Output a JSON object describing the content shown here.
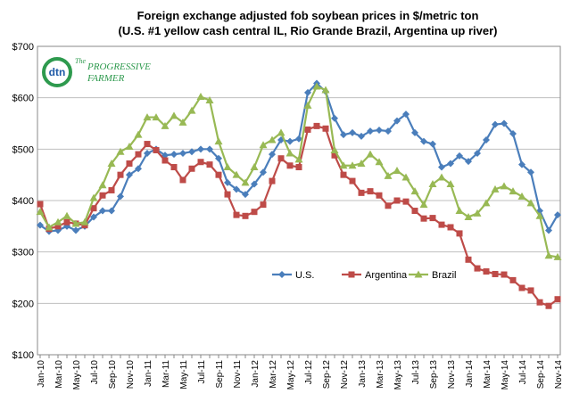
{
  "logo": [
    "dtn",
    "The",
    "PROGRESSIVE",
    "FARMER"
  ],
  "chart_data": {
    "type": "line",
    "title": "Foreign exchange adjusted fob soybean prices in $/metric ton",
    "subtitle": "(U.S. #1 yellow cash central IL, Rio Grande Brazil, Argentina up river)",
    "categories": [
      "Jan-10",
      null,
      "Mar-10",
      null,
      "May-10",
      null,
      "Jul-10",
      null,
      "Sep-10",
      null,
      "Nov-10",
      null,
      "Jan-11",
      null,
      "Mar-11",
      null,
      "May-11",
      null,
      "Jul-11",
      null,
      "Sep-11",
      null,
      "Nov-11",
      null,
      "Jan-12",
      null,
      "Mar-12",
      null,
      "May-12",
      null,
      "Jul-12",
      null,
      "Sep-12",
      null,
      "Nov-12",
      null,
      "Jan-13",
      null,
      "Mar-13",
      null,
      "May-13",
      null,
      "Jul-13",
      null,
      "Sep-13",
      null,
      "Nov-13",
      null,
      "Jan-14",
      null,
      "Mar-14",
      null,
      "May-14",
      null,
      "Jul-14",
      null,
      "Sep-14",
      null,
      "Nov-14"
    ],
    "series": [
      {
        "name": "U.S.",
        "color": "#4a7ebb",
        "marker": "diamond",
        "values": [
          352,
          340,
          342,
          350,
          342,
          350,
          368,
          380,
          380,
          408,
          450,
          462,
          492,
          500,
          488,
          490,
          492,
          495,
          500,
          500,
          482,
          435,
          422,
          412,
          432,
          455,
          490,
          518,
          515,
          520,
          610,
          628,
          612,
          560,
          528,
          532,
          525,
          535,
          537,
          535,
          555,
          568,
          532,
          515,
          510,
          465,
          472,
          487,
          476,
          492,
          518,
          548,
          550,
          530,
          470,
          455,
          380,
          342,
          372
        ]
      },
      {
        "name": "Argentina",
        "color": "#be4b48",
        "marker": "square",
        "values": [
          393,
          345,
          350,
          358,
          355,
          352,
          385,
          410,
          420,
          450,
          472,
          490,
          510,
          498,
          478,
          465,
          440,
          462,
          475,
          470,
          450,
          412,
          372,
          370,
          378,
          392,
          438,
          482,
          468,
          465,
          538,
          545,
          540,
          488,
          450,
          438,
          415,
          418,
          410,
          390,
          400,
          398,
          380,
          365,
          366,
          353,
          348,
          336,
          285,
          268,
          262,
          257,
          256,
          245,
          230,
          225,
          202,
          195,
          208
        ]
      },
      {
        "name": "Brazil",
        "color": "#98b954",
        "marker": "triangle",
        "values": [
          378,
          348,
          358,
          370,
          355,
          358,
          405,
          430,
          472,
          495,
          505,
          528,
          562,
          562,
          545,
          565,
          552,
          575,
          602,
          595,
          515,
          465,
          450,
          435,
          465,
          508,
          518,
          532,
          492,
          480,
          585,
          622,
          615,
          498,
          468,
          468,
          472,
          490,
          475,
          448,
          458,
          445,
          418,
          392,
          432,
          445,
          432,
          380,
          368,
          375,
          395,
          422,
          428,
          418,
          408,
          395,
          370,
          293,
          290
        ]
      }
    ],
    "ylim": [
      100,
      700
    ],
    "yticks": [
      {
        "value": 100,
        "label": "$100"
      },
      {
        "value": 200,
        "label": "$200"
      },
      {
        "value": 300,
        "label": "$300"
      },
      {
        "value": 400,
        "label": "$400"
      },
      {
        "value": 500,
        "label": "$500"
      },
      {
        "value": 600,
        "label": "$600"
      },
      {
        "value": 700,
        "label": "$700"
      }
    ],
    "grid": true,
    "legend": "inside"
  }
}
